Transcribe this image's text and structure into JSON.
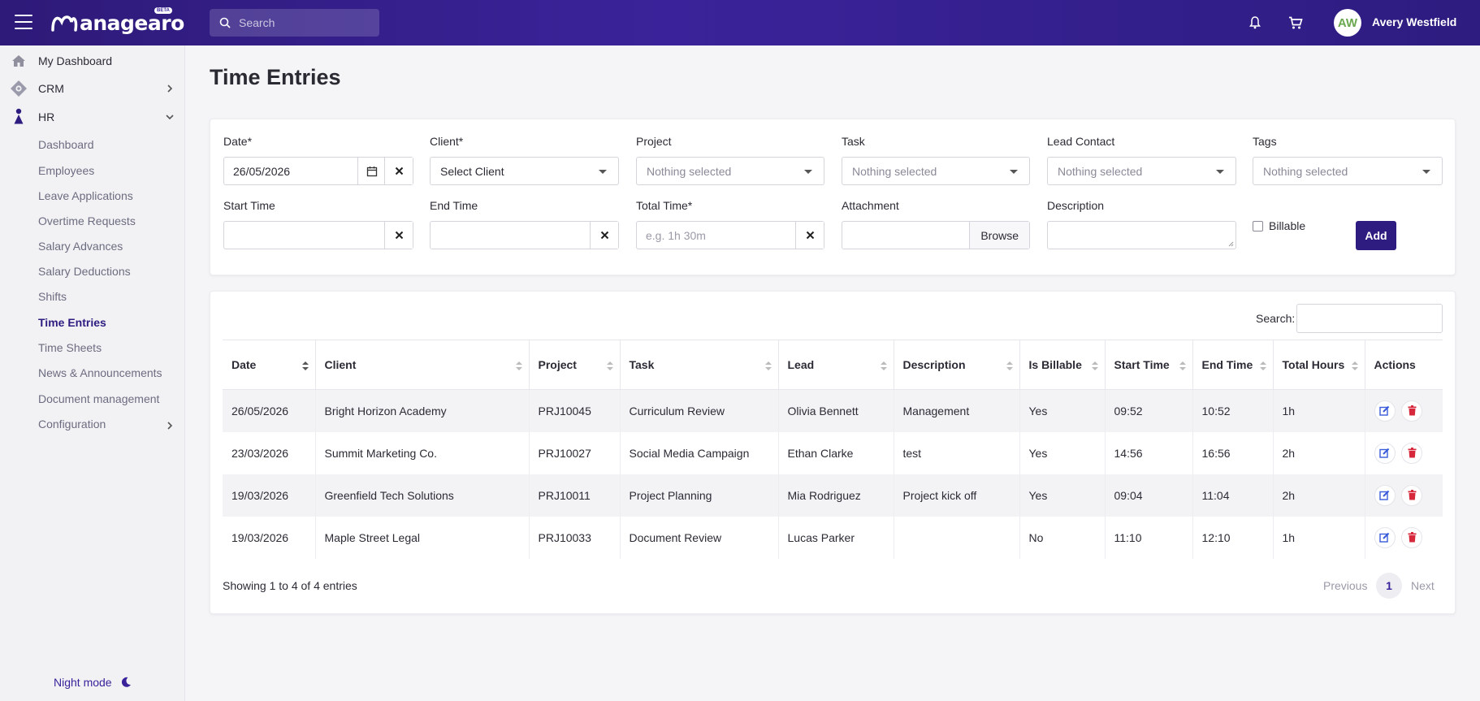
{
  "header": {
    "logo_text": "anagearo",
    "beta_badge": "BETA",
    "search_placeholder": "Search",
    "user_initials": "AW",
    "user_name": "Avery Westfield"
  },
  "sidebar": {
    "items": [
      {
        "label": "My Dashboard",
        "icon": "home-icon"
      },
      {
        "label": "CRM",
        "icon": "crm-icon"
      },
      {
        "label": "HR",
        "icon": "person-icon"
      }
    ],
    "hr_sub": [
      "Dashboard",
      "Employees",
      "Leave Applications",
      "Overtime Requests",
      "Salary Advances",
      "Salary Deductions",
      "Shifts",
      "Time Entries",
      "Time Sheets",
      "News & Announcements",
      "Document management",
      "Configuration"
    ],
    "active_sub": "Time Entries",
    "night_mode": "Night mode"
  },
  "page": {
    "title": "Time Entries"
  },
  "form": {
    "date_label": "Date*",
    "date_value": "26/05/2026",
    "client_label": "Client*",
    "client_value": "Select Client",
    "project_label": "Project",
    "project_value": "Nothing selected",
    "task_label": "Task",
    "task_value": "Nothing selected",
    "lead_label": "Lead Contact",
    "lead_value": "Nothing selected",
    "tags_label": "Tags",
    "tags_value": "Nothing selected",
    "start_label": "Start Time",
    "end_label": "End Time",
    "total_label": "Total Time*",
    "total_placeholder": "e.g. 1h 30m",
    "attachment_label": "Attachment",
    "browse_label": "Browse",
    "description_label": "Description",
    "billable_label": "Billable",
    "add_label": "Add"
  },
  "table": {
    "search_label": "Search:",
    "columns": [
      "Date",
      "Client",
      "Project",
      "Task",
      "Lead",
      "Description",
      "Is Billable",
      "Start Time",
      "End Time",
      "Total Hours",
      "Actions"
    ],
    "rows": [
      [
        "26/05/2026",
        "Bright Horizon Academy",
        "PRJ10045",
        "Curriculum Review",
        "Olivia Bennett",
        "Management",
        "Yes",
        "09:52",
        "10:52",
        "1h"
      ],
      [
        "23/03/2026",
        "Summit Marketing Co.",
        "PRJ10027",
        "Social Media Campaign",
        "Ethan Clarke",
        "test",
        "Yes",
        "14:56",
        "16:56",
        "2h"
      ],
      [
        "19/03/2026",
        "Greenfield Tech Solutions",
        "PRJ10011",
        "Project Planning",
        "Mia Rodriguez",
        "Project kick off",
        "Yes",
        "09:04",
        "11:04",
        "2h"
      ],
      [
        "19/03/2026",
        "Maple Street Legal",
        "PRJ10033",
        "Document Review",
        "Lucas Parker",
        "",
        "No",
        "11:10",
        "12:10",
        "1h"
      ]
    ],
    "showing": "Showing 1 to 4 of 4 entries",
    "previous": "Previous",
    "page": "1",
    "next": "Next"
  },
  "colors": {
    "brand": "#2e1c80",
    "edit": "#3a5bd9",
    "delete": "#d6283a"
  }
}
